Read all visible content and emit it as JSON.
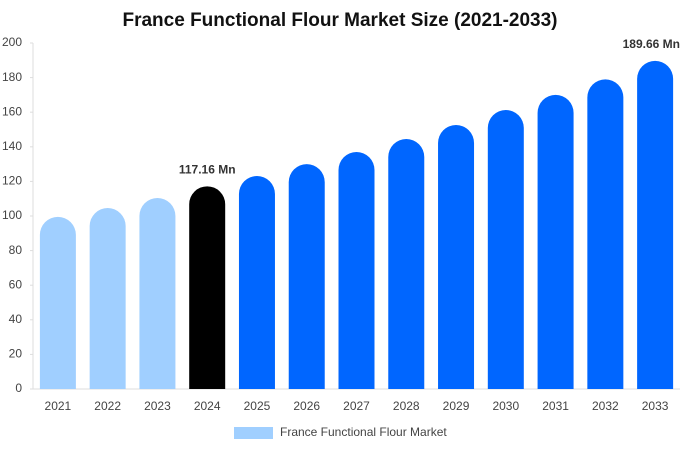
{
  "chart_data": {
    "type": "bar",
    "title": "France Functional Flour Market Size (2021-2033)",
    "categories": [
      "2021",
      "2022",
      "2023",
      "2024",
      "2025",
      "2026",
      "2027",
      "2028",
      "2029",
      "2030",
      "2031",
      "2032",
      "2033"
    ],
    "series": [
      {
        "name": "France Functional Flour Market",
        "color": "#a0cfff",
        "values": [
          99.5,
          104.6,
          110.4,
          117.16,
          123.1,
          130,
          137,
          144.5,
          152.6,
          161.3,
          170,
          179,
          189.66
        ],
        "value_labels": [
          null,
          null,
          null,
          "117.16 Mn",
          null,
          null,
          null,
          null,
          null,
          null,
          null,
          null,
          "189.66 Mn"
        ],
        "colors": [
          "#a0cfff",
          "#a0cfff",
          "#a0cfff",
          "#000000",
          "#0066ff",
          "#0066ff",
          "#0066ff",
          "#0066ff",
          "#0066ff",
          "#0066ff",
          "#0066ff",
          "#0066ff",
          "#0066ff"
        ]
      }
    ],
    "ylim": [
      0,
      200
    ],
    "yticks": [
      0,
      20,
      40,
      60,
      80,
      100,
      120,
      140,
      160,
      180,
      200
    ],
    "grid": false,
    "legend": "bottom"
  }
}
